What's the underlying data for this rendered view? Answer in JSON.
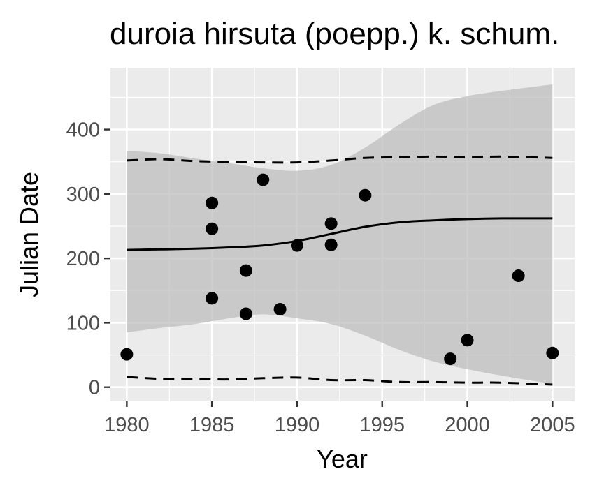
{
  "chart_data": {
    "type": "scatter",
    "title": "duroia hirsuta (poepp.) k. schum.",
    "xlabel": "Year",
    "ylabel": "Julian Date",
    "xlim": [
      1979,
      2006.3
    ],
    "ylim": [
      -22,
      496
    ],
    "x_ticks": [
      1980,
      1985,
      1990,
      1995,
      2000,
      2005
    ],
    "y_ticks": [
      0,
      100,
      200,
      300,
      400
    ],
    "x_minor": [
      1982.5,
      1987.5,
      1992.5,
      1997.5,
      2002.5
    ],
    "y_minor": [
      50,
      150,
      250,
      350,
      450
    ],
    "grid": true,
    "legend": "none",
    "colors": {
      "panel": "#ebebeb",
      "grid": "#ffffff",
      "ribbon": "#bdbdbd",
      "line": "#000000",
      "points": "#000000",
      "tick_label": "#4d4d4d",
      "tick": "#333333"
    },
    "points": [
      {
        "x": 1980,
        "y": 51
      },
      {
        "x": 1985,
        "y": 286
      },
      {
        "x": 1985,
        "y": 246
      },
      {
        "x": 1985,
        "y": 138
      },
      {
        "x": 1987,
        "y": 181
      },
      {
        "x": 1987,
        "y": 114
      },
      {
        "x": 1988,
        "y": 322
      },
      {
        "x": 1989,
        "y": 121
      },
      {
        "x": 1990,
        "y": 220
      },
      {
        "x": 1992,
        "y": 254
      },
      {
        "x": 1992,
        "y": 221
      },
      {
        "x": 1994,
        "y": 298
      },
      {
        "x": 1999,
        "y": 44
      },
      {
        "x": 2000,
        "y": 73
      },
      {
        "x": 2003,
        "y": 173
      },
      {
        "x": 2005,
        "y": 53
      }
    ],
    "fit_line": {
      "x": [
        1980,
        1982,
        1984,
        1986,
        1988,
        1990,
        1992,
        1994,
        1996,
        1998,
        2000,
        2002,
        2005
      ],
      "y": [
        213,
        214,
        215,
        217,
        220,
        227,
        238,
        249,
        256,
        259,
        261,
        262,
        262
      ]
    },
    "confidence_band": {
      "x": [
        1980,
        1982,
        1984,
        1986,
        1988,
        1990,
        1992,
        1994,
        1996,
        1998,
        2000,
        2002,
        2005
      ],
      "lower": [
        85,
        92,
        98,
        107,
        113,
        107,
        98,
        80,
        58,
        40,
        28,
        18,
        5
      ],
      "upper": [
        367,
        363,
        355,
        348,
        340,
        336,
        345,
        372,
        408,
        438,
        452,
        460,
        470
      ]
    },
    "prediction_interval": {
      "x": [
        1980,
        1982,
        1984,
        1986,
        1988,
        1990,
        1992,
        1994,
        1996,
        1998,
        2000,
        2002,
        2005
      ],
      "lower": [
        16,
        13,
        13,
        12,
        14,
        15,
        11,
        11,
        8,
        8,
        7,
        7,
        4
      ],
      "upper": [
        352,
        354,
        351,
        350,
        349,
        349,
        352,
        356,
        357,
        358,
        357,
        358,
        356
      ]
    }
  }
}
